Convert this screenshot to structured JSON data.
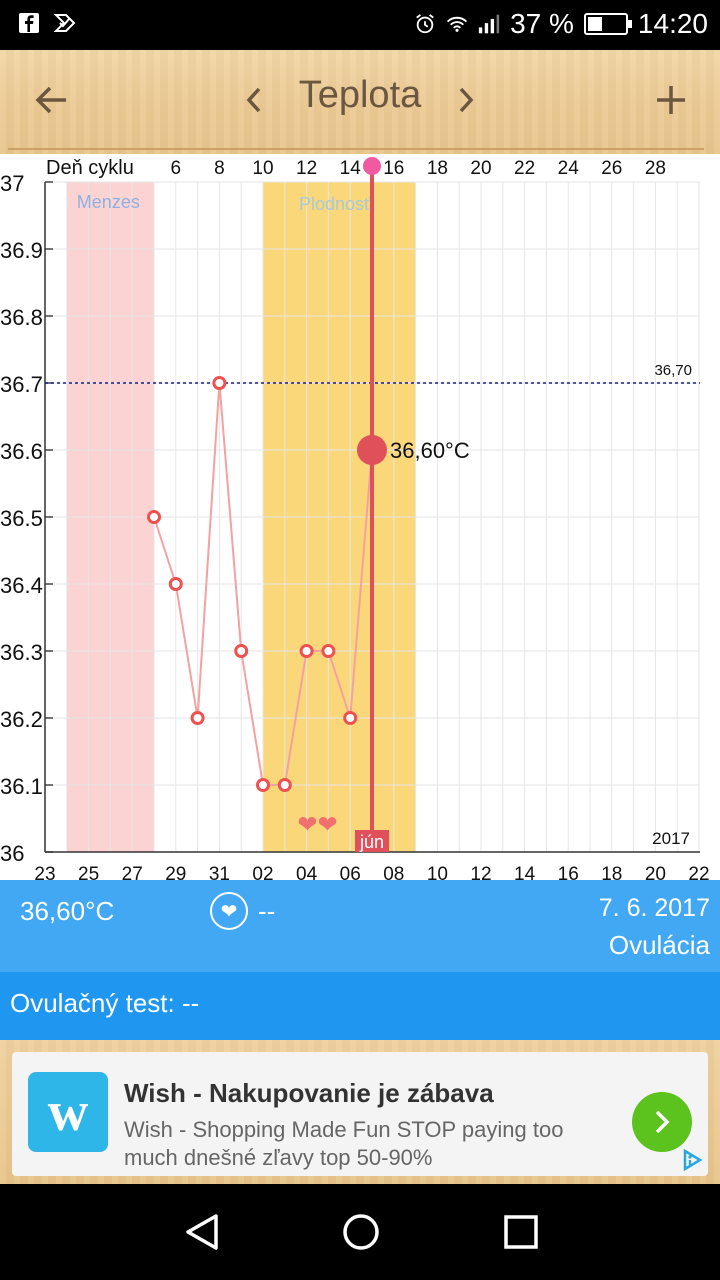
{
  "status_bar": {
    "battery_percent": "37 %",
    "time": "14:20",
    "battery_level": 0.37,
    "icons": [
      "facebook-icon",
      "check-icon",
      "alarm-icon",
      "wifi-icon",
      "signal-icon",
      "battery-icon"
    ]
  },
  "toolbar": {
    "title": "Teplota",
    "icons": [
      "back-arrow-icon",
      "chevron-left-icon",
      "chevron-right-icon",
      "plus-icon"
    ]
  },
  "chart_data": {
    "type": "line",
    "top_axis_label": "Deň cyklu",
    "cycle_days": [
      "6",
      "8",
      "10",
      "12",
      "14",
      "16",
      "18",
      "20",
      "22",
      "24",
      "26",
      "28"
    ],
    "date_ticks": [
      "23",
      "25",
      "27",
      "29",
      "31",
      "02",
      "04",
      "06",
      "08",
      "10",
      "12",
      "14",
      "16",
      "18",
      "20",
      "22"
    ],
    "y_ticks": [
      "37",
      "36.9",
      "36.8",
      "36.7",
      "36.6",
      "36.5",
      "36.4",
      "36.3",
      "36.2",
      "36.1",
      "36"
    ],
    "ylim": [
      36,
      37
    ],
    "xlim": [
      23,
      53
    ],
    "zones": [
      {
        "label": "Menzes",
        "x_start": 24,
        "x_end": 28,
        "color": "#fcd3d3"
      },
      {
        "label": "Plodnosť",
        "x_start": 33,
        "x_end": 40,
        "color": "#fad87a"
      }
    ],
    "threshold": {
      "value": 36.7,
      "label": "36,70"
    },
    "series": [
      {
        "x": [
          28,
          29,
          30,
          31,
          32,
          33,
          34,
          35,
          36,
          37
        ],
        "y": [
          36.5,
          36.4,
          36.2,
          36.7,
          36.3,
          36.1,
          36.1,
          36.3,
          36.3,
          36.2
        ]
      }
    ],
    "selected": {
      "x": 38,
      "y": 36.6,
      "label": "36,60°C"
    },
    "month_label": "jún",
    "year_label": "2017",
    "hearts": "❤❤",
    "line_color": "#f4a1a1",
    "marker_color": "#ef5050",
    "selected_color": "#e0505a",
    "threshold_color": "#1b1b8a"
  },
  "info": {
    "temperature": "36,60°C",
    "heart_value": "--",
    "date": "7. 6. 2017",
    "phase": "Ovulácia",
    "ovulation_test": "Ovulačný test: --"
  },
  "ad": {
    "title": "Wish - Nakupovanie je zábava",
    "description": "Wish - Shopping Made Fun STOP paying too much dnešné zľavy top 50-90%",
    "logo_glyph": "w"
  },
  "colors": {
    "info_bar": "#42a8f3",
    "info_bar_dark": "#1f96f0",
    "ad_button": "#5cc31e"
  }
}
